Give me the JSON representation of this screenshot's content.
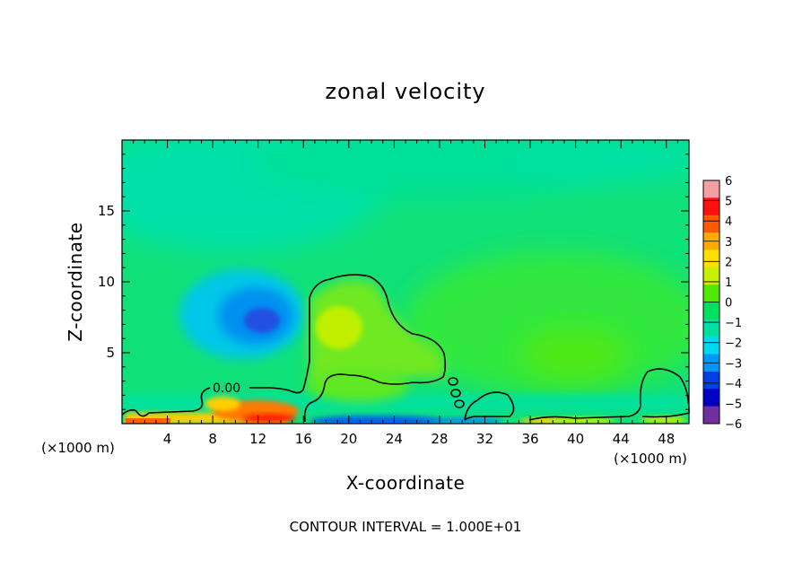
{
  "title": "zonal velocity",
  "footer": "CONTOUR INTERVAL = 1.000E+01",
  "x_unit_left": "(×1000 m)",
  "x_unit_right": "(×1000 m)",
  "chart_data": {
    "type": "heatmap",
    "title": "zonal velocity",
    "xlabel": "X-coordinate",
    "ylabel": "Z-coordinate",
    "x_unit": "(×1000 m)",
    "xlim": [
      0,
      50
    ],
    "ylim": [
      0,
      20
    ],
    "x_ticks": [
      4,
      8,
      12,
      16,
      20,
      24,
      28,
      32,
      36,
      40,
      44,
      48
    ],
    "y_ticks": [
      5,
      10,
      15
    ],
    "colorbar": {
      "ticks": [
        6,
        5,
        4,
        3,
        2,
        1,
        0,
        -1,
        -2,
        -3,
        -4,
        -5,
        -6
      ],
      "bin_colors": [
        "#f4a0a0",
        "#ff1010",
        "#ff5a00",
        "#ffaa00",
        "#ffe000",
        "#c8f000",
        "#50e800",
        "#00e060",
        "#00e0a0",
        "#00d8f0",
        "#0098f8",
        "#0040e8",
        "#0000c8",
        "#7030a0"
      ]
    },
    "contour_label": "0.00",
    "grid": false,
    "legend": "colorbar-right"
  }
}
